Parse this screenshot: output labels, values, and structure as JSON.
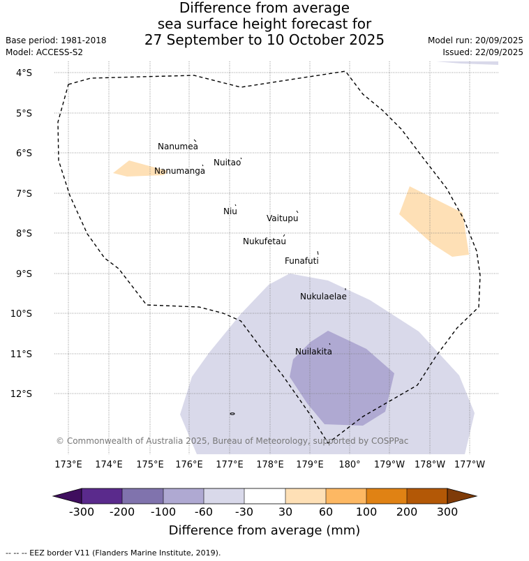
{
  "header": {
    "title_line1": "Difference from average",
    "title_line2": "sea surface height forecast for",
    "title_line3": "27 September to 10 October 2025",
    "base_period": "Base period: 1981-2018",
    "model": "Model: ACCESS-S2",
    "model_run": "Model run: 20/09/2025",
    "issued": "Issued: 22/09/2025"
  },
  "map": {
    "lat_labels": [
      "4°S",
      "5°S",
      "6°S",
      "7°S",
      "8°S",
      "9°S",
      "10°S",
      "11°S",
      "12°S"
    ],
    "lon_labels": [
      "173°E",
      "174°E",
      "175°E",
      "176°E",
      "177°E",
      "178°E",
      "179°E",
      "180°",
      "179°W",
      "178°W",
      "177°W"
    ],
    "islands": [
      "Nanumea",
      "Nuitao",
      "Nanumanga",
      "Niu",
      "Vaitupu",
      "Nukufetau",
      "Funafuti",
      "Nukulaelae",
      "Nuilakita"
    ],
    "copyright": "© Commonwealth of Australia 2025, Bureau of Meteorology, supported by COSPPac"
  },
  "colorbar": {
    "ticks": [
      "-300",
      "-200",
      "-100",
      "-60",
      "-30",
      "30",
      "60",
      "100",
      "200",
      "300"
    ],
    "colors": [
      "#3f0e5e",
      "#5a2a8c",
      "#8073ad",
      "#afa9d2",
      "#d9d9ea",
      "#ffffff",
      "#fee0b6",
      "#fdb863",
      "#e08214",
      "#b35806",
      "#7f3b08"
    ],
    "title": "Difference from average (mm)"
  },
  "footnote": "--  --  -- EEZ border V11 (Flanders Marine Institute, 2019)."
}
